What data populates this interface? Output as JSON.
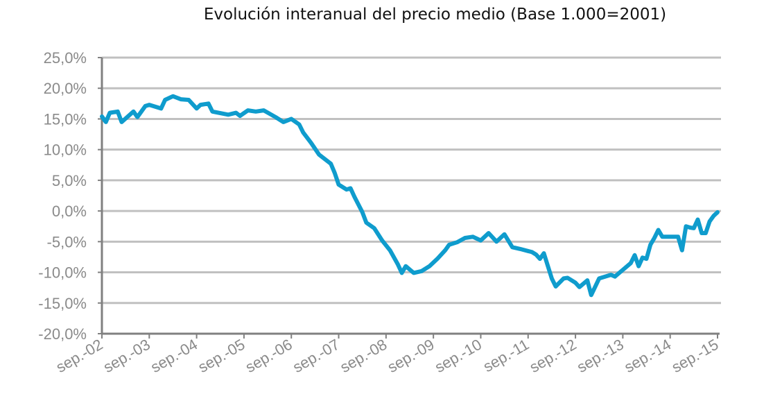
{
  "chart_data": {
    "type": "line",
    "title": "Evolución interanual del precio medio (Base 1.000=2001)",
    "xlabel": "",
    "ylabel": "",
    "ylim": [
      -20,
      25
    ],
    "y_ticks": [
      "25,0%",
      "20,0%",
      "15,0%",
      "10,0%",
      "5,0%",
      "0,0%",
      "-5,0%",
      "-10,0%",
      "-15,0%",
      "-20,0%"
    ],
    "y_tick_values": [
      25,
      20,
      15,
      10,
      5,
      0,
      -5,
      -10,
      -15,
      -20
    ],
    "x_ticks": [
      "sep.-02",
      "sep.-03",
      "sep.-04",
      "sep.-05",
      "sep.-06",
      "sep.-07",
      "sep.-08",
      "sep.-09",
      "sep.-10",
      "sep.-11",
      "sep.-12",
      "sep.-13",
      "sep.-14",
      "sep.-15"
    ],
    "x_range": [
      "2002-09",
      "2015-09"
    ],
    "grid": true,
    "line_color": "#0f9ccd",
    "grid_color": "#c0c0c0",
    "series": [
      {
        "x": [
          "2002-09",
          "2002-10",
          "2002-11",
          "2003-01",
          "2003-02",
          "2003-05",
          "2003-06",
          "2003-08",
          "2003-09",
          "2003-12",
          "2004-01",
          "2004-03",
          "2004-05",
          "2004-07",
          "2004-09",
          "2004-10",
          "2004-12",
          "2005-01",
          "2005-05",
          "2005-07",
          "2005-08",
          "2005-10",
          "2005-12",
          "2006-02",
          "2006-05",
          "2006-07",
          "2006-09",
          "2006-11",
          "2006-12",
          "2007-02",
          "2007-04",
          "2007-07",
          "2007-08",
          "2007-09",
          "2007-11",
          "2007-12",
          "2008-01",
          "2008-03",
          "2008-04",
          "2008-06",
          "2008-08",
          "2008-10",
          "2008-12",
          "2009-01",
          "2009-02",
          "2009-04",
          "2009-06",
          "2009-08",
          "2009-10",
          "2009-12",
          "2010-01",
          "2010-03",
          "2010-05",
          "2010-07",
          "2010-09",
          "2010-11",
          "2011-01",
          "2011-03",
          "2011-05",
          "2011-07",
          "2011-10",
          "2011-11",
          "2011-12",
          "2012-01",
          "2012-03",
          "2012-04",
          "2012-06",
          "2012-07",
          "2012-09",
          "2012-10",
          "2012-12",
          "2013-01",
          "2013-03",
          "2013-06",
          "2013-07",
          "2013-09",
          "2013-11",
          "2013-12",
          "2014-01",
          "2014-02",
          "2014-03",
          "2014-04",
          "2014-05",
          "2014-06",
          "2014-07",
          "2014-11",
          "2014-12",
          "2015-01",
          "2015-02",
          "2015-03",
          "2015-04",
          "2015-05",
          "2015-06",
          "2015-07",
          "2015-08",
          "2015-09"
        ],
        "y": [
          15.4,
          14.5,
          16.0,
          16.2,
          14.5,
          16.2,
          15.3,
          17.1,
          17.3,
          16.7,
          18.1,
          18.7,
          18.2,
          18.1,
          16.7,
          17.3,
          17.5,
          16.2,
          15.7,
          16.0,
          15.5,
          16.4,
          16.2,
          16.4,
          15.3,
          14.5,
          15.0,
          14.1,
          12.8,
          11.1,
          9.2,
          7.7,
          6.2,
          4.3,
          3.5,
          3.7,
          2.3,
          -0.2,
          -1.9,
          -2.8,
          -4.8,
          -6.4,
          -8.7,
          -10.1,
          -9.0,
          -10.1,
          -9.8,
          -9.0,
          -7.8,
          -6.4,
          -5.5,
          -5.1,
          -4.4,
          -4.2,
          -4.8,
          -3.6,
          -5.0,
          -3.8,
          -5.9,
          -6.2,
          -6.7,
          -7.1,
          -7.8,
          -6.9,
          -11.0,
          -12.3,
          -11.0,
          -10.9,
          -11.7,
          -12.4,
          -11.3,
          -13.7,
          -11.0,
          -10.4,
          -10.7,
          -9.6,
          -8.5,
          -7.2,
          -9.0,
          -7.6,
          -7.8,
          -5.5,
          -4.4,
          -3.1,
          -4.2,
          -4.2,
          -6.4,
          -2.5,
          -2.7,
          -2.8,
          -1.4,
          -3.6,
          -3.6,
          -1.7,
          -0.8,
          -0.2
        ]
      }
    ]
  }
}
